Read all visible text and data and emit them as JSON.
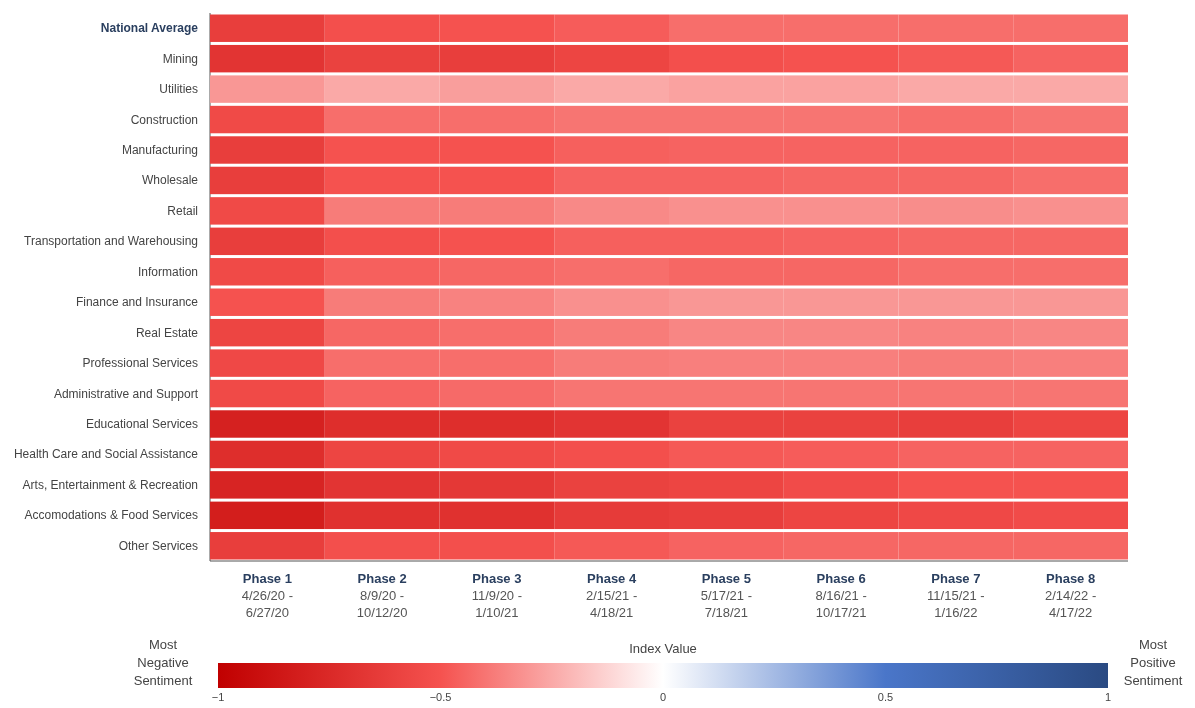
{
  "chart_data": {
    "type": "heatmap",
    "categories": [
      "Phase 1\n4/26/20 -\n6/27/20",
      "Phase 2\n8/9/20 -\n10/12/20",
      "Phase 3\n11/9/20 -\n1/10/21",
      "Phase 4\n2/15/21 -\n4/18/21",
      "Phase 5\n5/17/21 -\n7/18/21",
      "Phase 6\n8/16/21 -\n10/17/21",
      "Phase 7\n11/15/21 -\n1/16/22",
      "Phase 8\n2/14/22 -\n4/17/22"
    ],
    "y_categories": [
      "National Average",
      "Mining",
      "Utilities",
      "Construction",
      "Manufacturing",
      "Wholesale",
      "Retail",
      "Transportation and Warehousing",
      "Information",
      "Finance and Insurance",
      "Real Estate",
      "Professional Services",
      "Administrative and Support",
      "Educational Services",
      "Health Care and Social Assistance",
      "Arts, Entertainment & Recreation",
      "Accomodations & Food Services",
      "Other Services"
    ],
    "cells": [
      [
        -0.62,
        -0.52,
        -0.5,
        -0.47,
        -0.42,
        -0.42,
        -0.42,
        -0.42
      ],
      [
        -0.68,
        -0.6,
        -0.62,
        -0.58,
        -0.52,
        -0.5,
        -0.48,
        -0.45
      ],
      [
        -0.3,
        -0.25,
        -0.28,
        -0.25,
        -0.27,
        -0.27,
        -0.25,
        -0.25
      ],
      [
        -0.55,
        -0.42,
        -0.42,
        -0.4,
        -0.4,
        -0.4,
        -0.42,
        -0.4
      ],
      [
        -0.62,
        -0.5,
        -0.5,
        -0.46,
        -0.45,
        -0.45,
        -0.45,
        -0.44
      ],
      [
        -0.62,
        -0.5,
        -0.5,
        -0.45,
        -0.45,
        -0.44,
        -0.44,
        -0.42
      ],
      [
        -0.55,
        -0.38,
        -0.38,
        -0.34,
        -0.32,
        -0.32,
        -0.33,
        -0.32
      ],
      [
        -0.62,
        -0.52,
        -0.5,
        -0.46,
        -0.46,
        -0.45,
        -0.44,
        -0.44
      ],
      [
        -0.55,
        -0.46,
        -0.44,
        -0.42,
        -0.44,
        -0.44,
        -0.42,
        -0.42
      ],
      [
        -0.5,
        -0.38,
        -0.36,
        -0.32,
        -0.3,
        -0.3,
        -0.3,
        -0.3
      ],
      [
        -0.58,
        -0.44,
        -0.42,
        -0.38,
        -0.35,
        -0.35,
        -0.36,
        -0.35
      ],
      [
        -0.56,
        -0.42,
        -0.42,
        -0.38,
        -0.37,
        -0.37,
        -0.38,
        -0.37
      ],
      [
        -0.55,
        -0.45,
        -0.43,
        -0.4,
        -0.4,
        -0.4,
        -0.4,
        -0.4
      ],
      [
        -0.8,
        -0.72,
        -0.72,
        -0.68,
        -0.6,
        -0.6,
        -0.62,
        -0.58
      ],
      [
        -0.72,
        -0.58,
        -0.55,
        -0.52,
        -0.48,
        -0.47,
        -0.45,
        -0.45
      ],
      [
        -0.78,
        -0.68,
        -0.66,
        -0.6,
        -0.58,
        -0.54,
        -0.5,
        -0.5
      ],
      [
        -0.82,
        -0.7,
        -0.7,
        -0.64,
        -0.62,
        -0.58,
        -0.56,
        -0.54
      ],
      [
        -0.62,
        -0.52,
        -0.52,
        -0.48,
        -0.45,
        -0.44,
        -0.44,
        -0.44
      ]
    ],
    "clabel": "Index Value",
    "clim": [
      -1,
      1
    ],
    "cticks": [
      {
        "value": -1,
        "label": "−1"
      },
      {
        "value": -0.5,
        "label": "−0.5"
      },
      0,
      0.5,
      1
    ],
    "annotations": [
      "Most Negative Sentiment",
      "Most Positive Sentiment"
    ]
  }
}
